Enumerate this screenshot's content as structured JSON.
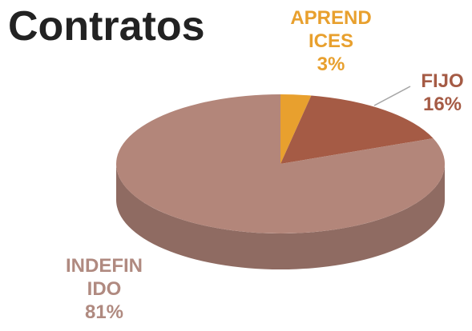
{
  "chart_data": {
    "type": "pie",
    "title": "Contratos",
    "categories": [
      "APRENDICES",
      "FIJO",
      "INDEFINIDO"
    ],
    "values": [
      3,
      16,
      81
    ],
    "value_labels": [
      "3%",
      "16%",
      "81%"
    ],
    "colors": [
      "#e8a02e",
      "#a55b45",
      "#b3867a"
    ]
  }
}
